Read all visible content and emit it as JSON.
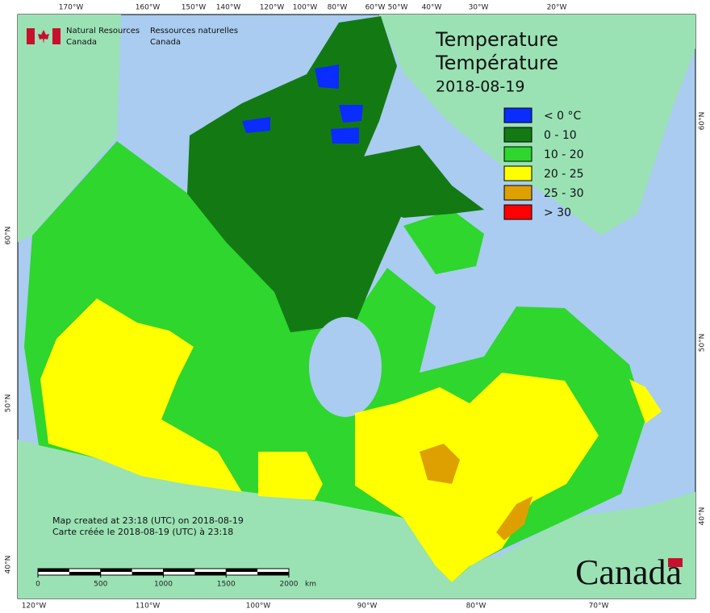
{
  "header": {
    "department_en": [
      "Natural Resources",
      "Canada"
    ],
    "department_fr": [
      "Ressources naturelles",
      "Canada"
    ]
  },
  "title": {
    "en": "Temperature",
    "fr": "Température",
    "date": "2018-08-19"
  },
  "legend": [
    {
      "label": "< 0 °C",
      "color": "#0a2cff"
    },
    {
      "label": "0 - 10",
      "color": "#137a13"
    },
    {
      "label": "10 - 20",
      "color": "#2ed62e"
    },
    {
      "label": "20 - 25",
      "color": "#ffff00"
    },
    {
      "label": "25 - 30",
      "color": "#dea000"
    },
    {
      "label": "> 30",
      "color": "#ff0000"
    }
  ],
  "grid_labels": {
    "top": [
      "170°W",
      "160°W",
      "150°W",
      "140°W",
      "120°W",
      "100°W",
      "80°W",
      "60°W",
      "50°W",
      "40°W",
      "30°W",
      "20°W"
    ],
    "bottom": [
      "120°W",
      "110°W",
      "100°W",
      "90°W",
      "80°W",
      "70°W"
    ],
    "left": [
      "60°N",
      "50°N",
      "40°N"
    ],
    "right": [
      "60°N",
      "50°N",
      "40°N"
    ]
  },
  "notes": [
    "Map created at 23:18 (UTC) on 2018-08-19",
    "Carte créée le 2018-08-19 (UTC) à 23:18"
  ],
  "scale_bar": {
    "ticks": [
      0,
      500,
      1000,
      1500,
      2000
    ],
    "unit": "km"
  },
  "wordmark": "Canada"
}
